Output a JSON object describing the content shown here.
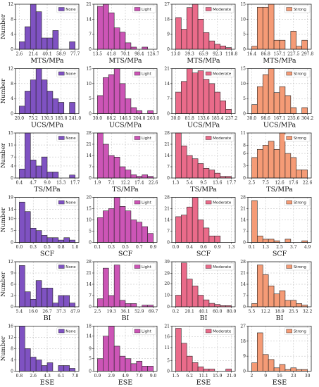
{
  "colors": {
    "None": "#7f52c2",
    "Light": "#cc55b6",
    "Moderate": "#ea6b8a",
    "Strong": "#f59b76"
  },
  "levels": [
    "None",
    "Light",
    "Moderate",
    "Strong"
  ],
  "ylabel": "Number",
  "chart_data": [
    {
      "type": "bar",
      "row_label": "MTS/MPa",
      "panels": [
        {
          "level": "None",
          "ylim": [
            0,
            12
          ],
          "yticks": [
            0,
            4,
            8,
            12
          ],
          "xticks": [
            "2.6",
            "21.4",
            "40.1",
            "58.9",
            "77.7"
          ],
          "values": [
            2,
            6,
            12,
            10,
            3,
            3,
            5,
            0,
            0,
            2
          ]
        },
        {
          "level": "Light",
          "ylim": [
            0,
            21
          ],
          "yticks": [
            0,
            7,
            14,
            21
          ],
          "xticks": [
            "13.5",
            "41.8",
            "70.1",
            "98.4",
            "126.7"
          ],
          "values": [
            20,
            21,
            17,
            10,
            8,
            3,
            1,
            0,
            1,
            0
          ]
        },
        {
          "level": "Moderate",
          "ylim": [
            0,
            27
          ],
          "yticks": [
            0,
            9,
            18,
            27
          ],
          "xticks": [
            "13.0",
            "39.3",
            "65.9",
            "92.3",
            "118.8"
          ],
          "values": [
            19,
            12,
            25,
            27,
            18,
            10,
            5,
            3,
            2,
            1
          ]
        },
        {
          "level": "Strong",
          "ylim": [
            0,
            15
          ],
          "yticks": [
            0,
            5,
            10,
            15
          ],
          "xticks": [
            "16.4",
            "86.8",
            "157.1",
            "227.5",
            "297.8"
          ],
          "values": [
            1,
            14,
            14,
            15,
            3,
            3,
            0,
            6,
            1,
            3
          ]
        }
      ]
    },
    {
      "type": "bar",
      "row_label": "UCS/MPa",
      "panels": [
        {
          "level": "None",
          "ylim": [
            0,
            12
          ],
          "yticks": [
            0,
            4,
            8,
            12
          ],
          "xticks": [
            "20.0",
            "75.2",
            "130.5",
            "185.8",
            "241.0"
          ],
          "values": [
            2,
            6,
            9,
            12,
            9,
            6,
            4,
            3,
            0,
            3
          ]
        },
        {
          "level": "Light",
          "ylim": [
            0,
            15
          ],
          "yticks": [
            0,
            5,
            10,
            15
          ],
          "xticks": [
            "30.0",
            "88.2",
            "146.5",
            "204.8",
            "263.0"
          ],
          "values": [
            6,
            12,
            13,
            15,
            10,
            5,
            2,
            1,
            0,
            1
          ]
        },
        {
          "level": "Moderate",
          "ylim": [
            0,
            21
          ],
          "yticks": [
            0,
            7,
            14,
            21
          ],
          "xticks": [
            "30.0",
            "81.8",
            "133.6",
            "185.4",
            "237.2"
          ],
          "values": [
            10,
            15,
            21,
            19,
            20,
            16,
            14,
            10,
            6,
            2
          ]
        },
        {
          "level": "Strong",
          "ylim": [
            0,
            15
          ],
          "yticks": [
            0,
            5,
            10,
            15
          ],
          "xticks": [
            "30.0",
            "98.6",
            "167.1",
            "235.6",
            "304.2"
          ],
          "values": [
            3,
            9,
            13,
            15,
            7,
            9,
            6,
            2,
            0,
            2
          ]
        }
      ]
    },
    {
      "type": "bar",
      "row_label": "TS/MPa",
      "panels": [
        {
          "level": "None",
          "ylim": [
            0,
            15
          ],
          "yticks": [
            0,
            4,
            7,
            11,
            15
          ],
          "xticks": [
            "0.4",
            "4.7",
            "9.0",
            "13.3",
            "17.7"
          ],
          "values": [
            3,
            15,
            6,
            4,
            7,
            2,
            2,
            0,
            0,
            1
          ]
        },
        {
          "level": "Light",
          "ylim": [
            0,
            28
          ],
          "yticks": [
            0,
            7,
            14,
            21,
            28
          ],
          "xticks": [
            "1.9",
            "7.1",
            "12.2",
            "17.4",
            "22.6"
          ],
          "values": [
            28,
            21,
            14,
            13,
            7,
            5,
            2,
            1,
            2,
            1
          ]
        },
        {
          "level": "Moderate",
          "ylim": [
            0,
            28
          ],
          "yticks": [
            0,
            7,
            14,
            21,
            28
          ],
          "xticks": [
            "1.3",
            "5.4",
            "9.5",
            "13.6",
            "17.7"
          ],
          "values": [
            28,
            20,
            14,
            12,
            9,
            6,
            5,
            3,
            1,
            1
          ]
        },
        {
          "level": "Strong",
          "ylim": [
            0,
            11
          ],
          "yticks": [
            0,
            3,
            6,
            8,
            11
          ],
          "xticks": [
            "2.5",
            "7.5",
            "12.6",
            "17.6",
            "22.6"
          ],
          "values": [
            5,
            7,
            8,
            9,
            7,
            11,
            6,
            5,
            2,
            2
          ]
        }
      ]
    },
    {
      "type": "bar",
      "row_label": "SCF",
      "panels": [
        {
          "level": "None",
          "ylim": [
            0,
            19
          ],
          "yticks": [
            0,
            5,
            10,
            14,
            19
          ],
          "xticks": [
            "0.0",
            "0.3",
            "0.5",
            "0.8",
            "1.0"
          ],
          "values": [
            17,
            13,
            6,
            5,
            3,
            2,
            2,
            1,
            2,
            1
          ]
        },
        {
          "level": "Light",
          "ylim": [
            0,
            20
          ],
          "yticks": [
            0,
            5,
            10,
            15,
            20
          ],
          "xticks": [
            "0.1",
            "0.3",
            "0.5",
            "0.7",
            "0.9"
          ],
          "values": [
            11,
            14,
            15,
            20,
            16,
            14,
            10,
            9,
            7,
            4
          ]
        },
        {
          "level": "Moderate",
          "ylim": [
            0,
            28
          ],
          "yticks": [
            0,
            7,
            14,
            21,
            28
          ],
          "xticks": [
            "0.0",
            "0.4",
            "0.6",
            "0.9",
            "1.3"
          ],
          "values": [
            16,
            17,
            22,
            28,
            14,
            9,
            4,
            4,
            0,
            0
          ]
        },
        {
          "level": "Strong",
          "ylim": [
            0,
            28
          ],
          "yticks": [
            0,
            7,
            14,
            21,
            28
          ],
          "xticks": [
            "0.1",
            "1.3",
            "2.5",
            "3.7",
            "4.9"
          ],
          "values": [
            26,
            4,
            2,
            2,
            1,
            0,
            2,
            0,
            0,
            1
          ]
        }
      ]
    },
    {
      "type": "bar",
      "row_label": "BI",
      "panels": [
        {
          "level": "None",
          "ylim": [
            0,
            12
          ],
          "yticks": [
            0,
            3,
            6,
            9,
            12
          ],
          "xticks": [
            "5.4",
            "16.0",
            "26.7",
            "37.3",
            "47.9"
          ],
          "values": [
            11,
            4,
            2,
            7,
            5,
            5,
            1,
            3,
            3,
            1
          ]
        },
        {
          "level": "Light",
          "ylim": [
            0,
            28
          ],
          "yticks": [
            0,
            7,
            14,
            21,
            28
          ],
          "xticks": [
            "2.5",
            "19.3",
            "36.1",
            "52.9",
            "69.7"
          ],
          "values": [
            5,
            24,
            7,
            26,
            4,
            2,
            2,
            0,
            1,
            1
          ]
        },
        {
          "level": "Moderate",
          "ylim": [
            0,
            39
          ],
          "yticks": [
            0,
            10,
            20,
            29,
            39
          ],
          "xticks": [
            "0.2",
            "20.1",
            "40.1",
            "60.0",
            "80.0"
          ],
          "values": [
            10,
            38,
            24,
            18,
            10,
            6,
            3,
            2,
            1,
            1
          ]
        },
        {
          "level": "Strong",
          "ylim": [
            0,
            28
          ],
          "yticks": [
            0,
            7,
            14,
            21,
            28
          ],
          "xticks": [
            "5.5",
            "12.2",
            "18.9",
            "25.5",
            "32.2"
          ],
          "values": [
            2,
            26,
            20,
            13,
            8,
            10,
            4,
            4,
            2,
            1
          ]
        }
      ]
    },
    {
      "type": "bar",
      "row_label": "ESE",
      "panels": [
        {
          "level": "None",
          "ylim": [
            0,
            16
          ],
          "yticks": [
            0,
            4,
            8,
            12,
            16
          ],
          "xticks": [
            "0.8",
            "2.6",
            "4.3",
            "6.1",
            "7.8"
          ],
          "values": [
            16,
            8,
            5,
            4,
            2,
            3,
            0,
            2,
            2,
            1
          ]
        },
        {
          "level": "Light",
          "ylim": [
            0,
            18
          ],
          "yticks": [
            0,
            5,
            9,
            14,
            18
          ],
          "xticks": [
            "0.9",
            "2.9",
            "4.9",
            "7.0",
            "9.0"
          ],
          "values": [
            5,
            14,
            18,
            10,
            6,
            5,
            3,
            4,
            2,
            2
          ]
        },
        {
          "level": "Moderate",
          "ylim": [
            0,
            21
          ],
          "yticks": [
            0,
            5,
            11,
            16,
            21
          ],
          "xticks": [
            "1.5",
            "6.2",
            "11.1",
            "15.9",
            "21.0"
          ],
          "values": [
            20,
            13,
            7,
            4,
            2,
            1,
            1,
            0,
            0,
            1
          ]
        },
        {
          "level": "Strong",
          "ylim": [
            0,
            27
          ],
          "yticks": [
            0,
            9,
            18,
            27
          ],
          "xticks": [
            "2",
            "9",
            "16",
            "23",
            "30"
          ],
          "values": [
            5,
            23,
            10,
            7,
            2,
            4,
            1,
            2,
            1,
            1
          ]
        }
      ]
    }
  ]
}
